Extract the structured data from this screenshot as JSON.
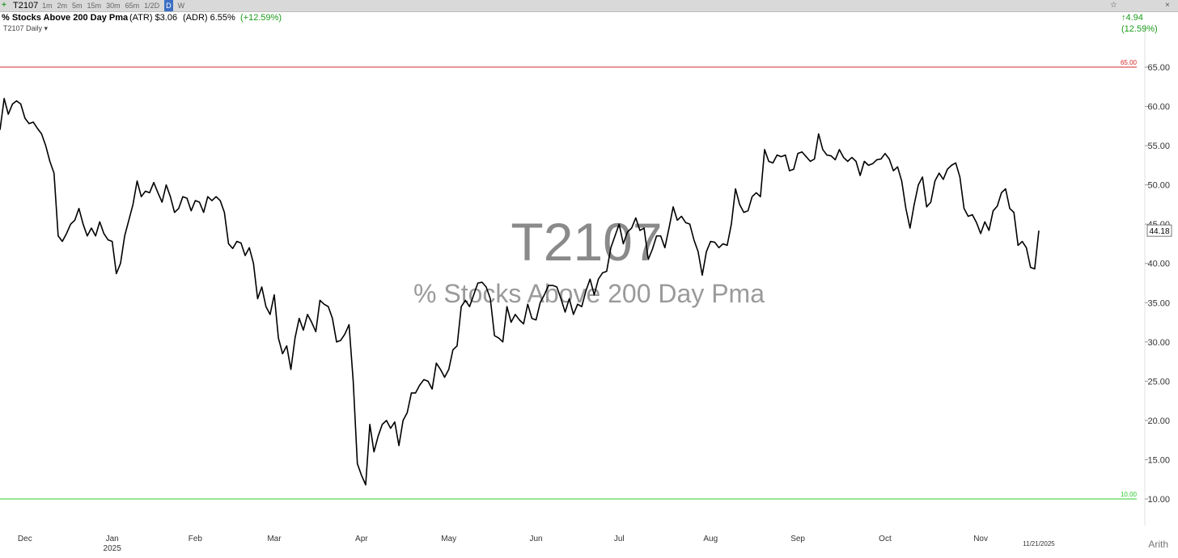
{
  "toolbar": {
    "symbol": "T2107",
    "intervals": [
      "1m",
      "2m",
      "5m",
      "15m",
      "30m",
      "65m",
      "1/2D",
      "D",
      "W"
    ]
  },
  "header": {
    "name": "% Stocks Above 200 Day Pma",
    "atr": "(ATR) $3.06",
    "adr": "(ADR) 6.55%",
    "change": "(+12.59%)",
    "right_change": "4.94 (12.59%)"
  },
  "chart_label": "T2107 Daily",
  "watermark": {
    "symbol": "T2107",
    "name": "% Stocks Above 200 Day Pma"
  },
  "scale_mode": "Arith",
  "chart_data": {
    "type": "line",
    "color": "#000000",
    "grid": false,
    "last_label": "44.18",
    "year_label": "2025",
    "reference_lines": [
      {
        "value": 65,
        "label": "65.00",
        "color": "#d62728"
      },
      {
        "value": 10,
        "label": "10.00",
        "color": "#2ecc2e"
      }
    ],
    "ylim": [
      6.6,
      70.46
    ],
    "yticks": [
      {
        "value": 10,
        "label": "10.00"
      },
      {
        "value": 15,
        "label": "15.00"
      },
      {
        "value": 20,
        "label": "20.00"
      },
      {
        "value": 25,
        "label": "25.00"
      },
      {
        "value": 30,
        "label": "30.00"
      },
      {
        "value": 35,
        "label": "35.00"
      },
      {
        "value": 40,
        "label": "40.00"
      },
      {
        "value": 45,
        "label": "45.00"
      },
      {
        "value": 50,
        "label": "50.00"
      },
      {
        "value": 55,
        "label": "55.00"
      },
      {
        "value": 60,
        "label": "60.00"
      },
      {
        "value": 65,
        "label": "65.00"
      }
    ],
    "categories": [
      null,
      null,
      null,
      null,
      null,
      null,
      "Dec",
      null,
      null,
      null,
      null,
      null,
      null,
      null,
      null,
      null,
      null,
      null,
      null,
      null,
      null,
      null,
      null,
      null,
      null,
      null,
      null,
      "Jan",
      null,
      null,
      null,
      null,
      null,
      null,
      null,
      null,
      null,
      null,
      null,
      null,
      null,
      null,
      null,
      null,
      null,
      null,
      null,
      "Feb",
      null,
      null,
      null,
      null,
      null,
      null,
      null,
      null,
      null,
      null,
      null,
      null,
      null,
      null,
      null,
      null,
      null,
      null,
      "Mar",
      null,
      null,
      null,
      null,
      null,
      null,
      null,
      null,
      null,
      null,
      null,
      null,
      null,
      null,
      null,
      null,
      null,
      null,
      null,
      null,
      "Apr",
      null,
      null,
      null,
      null,
      null,
      null,
      null,
      null,
      null,
      null,
      null,
      null,
      null,
      null,
      null,
      null,
      null,
      null,
      null,
      null,
      "May",
      null,
      null,
      null,
      null,
      null,
      null,
      null,
      null,
      null,
      null,
      null,
      null,
      null,
      null,
      null,
      null,
      null,
      null,
      null,
      null,
      "Jun",
      null,
      null,
      null,
      null,
      null,
      null,
      null,
      null,
      null,
      null,
      null,
      null,
      null,
      null,
      null,
      null,
      null,
      null,
      null,
      "Jul",
      null,
      null,
      null,
      null,
      null,
      null,
      null,
      null,
      null,
      null,
      null,
      null,
      null,
      null,
      null,
      null,
      null,
      null,
      null,
      null,
      null,
      "Aug",
      null,
      null,
      null,
      null,
      null,
      null,
      null,
      null,
      null,
      null,
      null,
      null,
      null,
      null,
      null,
      null,
      null,
      null,
      null,
      null,
      "Sep",
      null,
      null,
      null,
      null,
      null,
      null,
      null,
      null,
      null,
      null,
      null,
      null,
      null,
      null,
      null,
      null,
      null,
      null,
      null,
      null,
      "Oct",
      null,
      null,
      null,
      null,
      null,
      null,
      null,
      null,
      null,
      null,
      null,
      null,
      null,
      null,
      null,
      null,
      null,
      null,
      null,
      null,
      null,
      null,
      "Nov",
      null,
      null,
      null,
      null,
      null,
      null,
      null,
      null,
      null,
      null,
      null,
      null,
      null,
      "11/21/2025"
    ],
    "values": [
      57,
      61,
      59,
      60.3,
      60.7,
      60.3,
      58.5,
      57.8,
      58,
      57.2,
      56.5,
      55,
      53,
      51.5,
      43.5,
      42.8,
      43.8,
      45,
      45.5,
      47,
      45,
      43.5,
      44.5,
      43.5,
      45.3,
      43.8,
      43,
      42.8,
      38.7,
      40,
      43.5,
      45.5,
      47.5,
      50.5,
      48.5,
      49.2,
      49,
      50.3,
      49,
      47.8,
      50,
      48.5,
      46.5,
      47,
      48.5,
      48.3,
      46.7,
      48,
      47.8,
      46.5,
      48.5,
      48,
      48.5,
      48,
      46.5,
      42.5,
      41.9,
      42.8,
      42.6,
      41,
      42,
      40,
      35.5,
      37,
      34.5,
      33.5,
      36,
      30.5,
      28.5,
      29.5,
      26.5,
      30.5,
      33,
      31.5,
      33.5,
      32.5,
      31.3,
      35.3,
      34.8,
      34.5,
      33,
      30,
      30.2,
      31,
      32.2,
      25,
      14.5,
      13,
      11.8,
      19.5,
      16,
      18,
      19.5,
      20,
      19,
      19.8,
      16.8,
      20,
      21,
      23.5,
      23.5,
      24.5,
      25.2,
      25,
      24,
      27.3,
      26.5,
      25.5,
      26.5,
      29,
      29.5,
      34.5,
      35.3,
      34.5,
      36,
      37.5,
      37.6,
      37,
      35.5,
      30.8,
      30.5,
      30,
      34.5,
      32.5,
      33.5,
      32.8,
      32.3,
      34.8,
      33,
      32.8,
      35,
      36,
      37.2,
      37.2,
      37,
      35.5,
      33.8,
      35.5,
      33.5,
      34.8,
      34.5,
      36.5,
      38,
      36,
      38,
      38.8,
      39,
      42,
      43.5,
      45,
      42.5,
      44,
      44.5,
      45.8,
      44.2,
      44.5,
      40.5,
      41.8,
      43.5,
      43.5,
      42,
      44.5,
      47.2,
      45.5,
      46,
      45.2,
      45,
      43,
      41.5,
      38.5,
      41.5,
      42.8,
      42.7,
      42,
      42.5,
      42.3,
      45,
      49.5,
      47.5,
      46.5,
      46.7,
      48.5,
      49,
      48.5,
      54.5,
      53,
      52.8,
      53.8,
      53.6,
      53.8,
      51.8,
      52,
      54,
      54.2,
      53.6,
      53,
      53.3,
      56.5,
      54.5,
      53.8,
      53.7,
      53.2,
      54.5,
      53.5,
      53,
      53.5,
      53,
      51.2,
      53,
      52.5,
      52.7,
      53.2,
      53.3,
      54,
      53.3,
      51.8,
      52.3,
      50.5,
      47,
      44.5,
      47.5,
      50,
      51,
      47.2,
      47.8,
      50.5,
      51.5,
      50.7,
      52,
      52.5,
      52.8,
      51,
      47,
      46,
      46.2,
      45.2,
      43.8,
      45.3,
      44.2,
      46.7,
      47.3,
      49,
      49.5,
      47,
      46.5,
      42.3,
      42.8,
      42,
      39.5,
      39.3,
      44.18
    ]
  }
}
